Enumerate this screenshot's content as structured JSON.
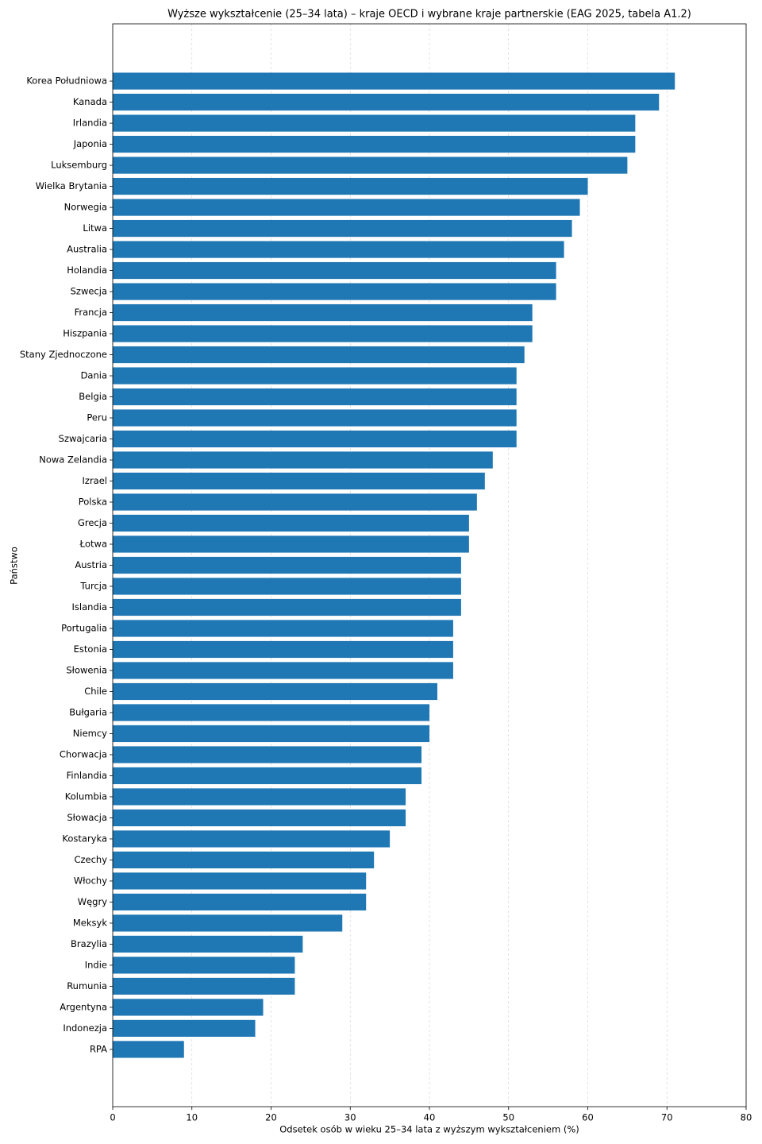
{
  "chart_data": {
    "type": "barh",
    "title": "Wyższe wykształcenie (25–34 lata) – kraje OECD i wybrane kraje partnerskie (EAG 2025, tabela A1.2)",
    "x_label": "Odsetek osób w wieku 25–34 lata z wyższym wykształceniem (%)",
    "y_label": "Państwo",
    "categories": [
      "Korea Południowa",
      "Kanada",
      "Irlandia",
      "Japonia",
      "Luksemburg",
      "Wielka Brytania",
      "Norwegia",
      "Litwa",
      "Australia",
      "Holandia",
      "Szwecja",
      "Francja",
      "Hiszpania",
      "Stany Zjednoczone",
      "Dania",
      "Belgia",
      "Peru",
      "Szwajcaria",
      "Nowa Zelandia",
      "Izrael",
      "Polska",
      "Grecja",
      "Łotwa",
      "Austria",
      "Turcja",
      "Islandia",
      "Portugalia",
      "Estonia",
      "Słowenia",
      "Chile",
      "Bułgaria",
      "Niemcy",
      "Chorwacja",
      "Finlandia",
      "Kolumbia",
      "Słowacja",
      "Kostaryka",
      "Czechy",
      "Włochy",
      "Węgry",
      "Meksyk",
      "Brazylia",
      "Indie",
      "Rumunia",
      "Argentyna",
      "Indonezja",
      "RPA"
    ],
    "values": [
      71,
      69,
      66,
      66,
      65,
      60,
      59,
      58,
      57,
      56,
      56,
      53,
      53,
      52,
      51,
      51,
      51,
      51,
      48,
      47,
      46,
      45,
      45,
      44,
      44,
      44,
      43,
      43,
      43,
      41,
      40,
      40,
      39,
      39,
      37,
      37,
      35,
      33,
      32,
      32,
      29,
      24,
      23,
      23,
      19,
      18,
      9
    ],
    "color": "#1f77b4",
    "xlim": [
      0,
      80
    ],
    "xticks": [
      0,
      10,
      20,
      30,
      40,
      50,
      60,
      70,
      80
    ],
    "grid": true
  }
}
